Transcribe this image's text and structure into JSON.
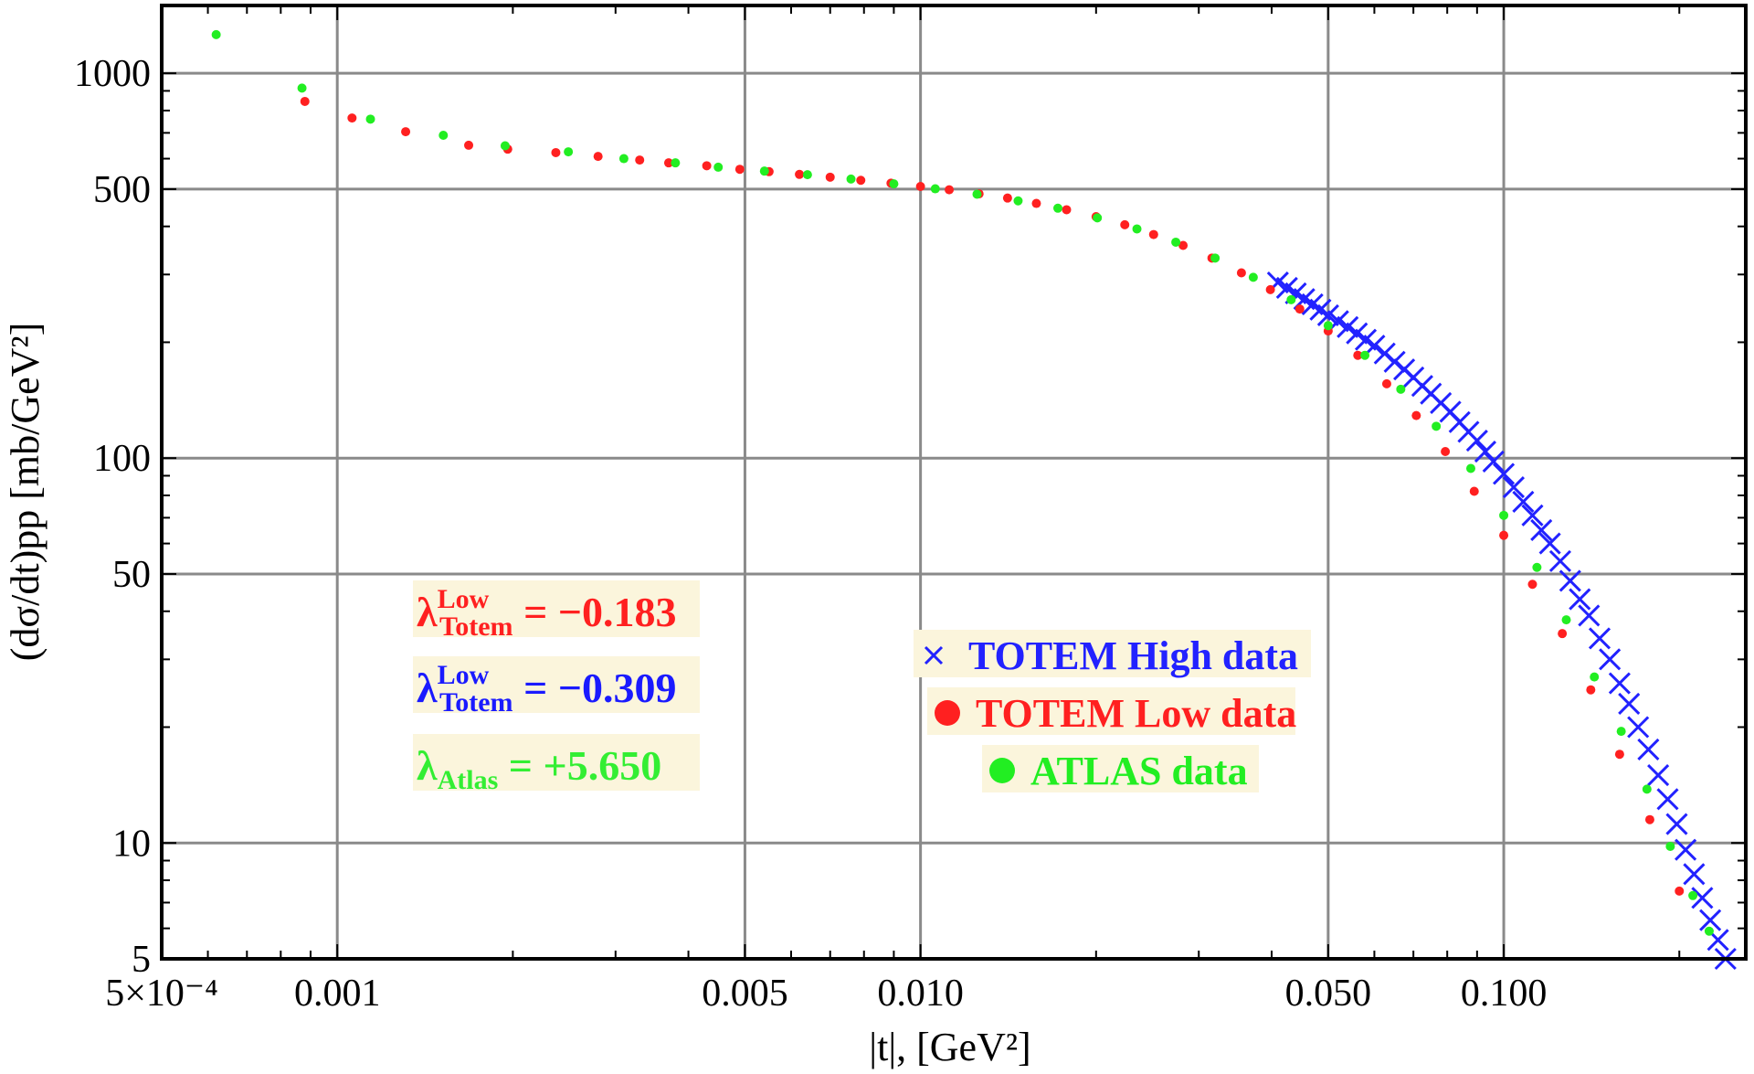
{
  "chart_data": {
    "type": "scatter",
    "x_scale": "log",
    "y_scale": "log",
    "xlim": [
      0.0005,
      0.26
    ],
    "ylim": [
      5,
      1500
    ],
    "grid": true,
    "xlabel": "|t|, [GeV²]",
    "ylabel": "(dσ/dt)pp [mb/GeV²]",
    "x_ticks": [
      {
        "value": 0.0005,
        "label": "5×10⁻⁴"
      },
      {
        "value": 0.001,
        "label": "0.001"
      },
      {
        "value": 0.005,
        "label": "0.005"
      },
      {
        "value": 0.01,
        "label": "0.010"
      },
      {
        "value": 0.05,
        "label": "0.050"
      },
      {
        "value": 0.1,
        "label": "0.100"
      }
    ],
    "y_ticks": [
      {
        "value": 5,
        "label": "5"
      },
      {
        "value": 10,
        "label": "10"
      },
      {
        "value": 50,
        "label": "50"
      },
      {
        "value": 100,
        "label": "100"
      },
      {
        "value": 500,
        "label": "500"
      },
      {
        "value": 1000,
        "label": "1000"
      }
    ],
    "legend": {
      "placement": "center-right",
      "entries": [
        "TOTEM High data",
        "TOTEM Low data",
        "ATLAS data"
      ]
    },
    "annotations": [
      {
        "symbol": "λ",
        "sup": "Low",
        "sub": "Totem",
        "text": " = −0.183",
        "color": "#ff2020"
      },
      {
        "symbol": "λ",
        "sup": "Low",
        "sub": "Totem",
        "text": " = −0.309",
        "color": "#1a1aff"
      },
      {
        "symbol": "λ",
        "sup": "",
        "sub": "Atlas",
        "text": " = +5.650",
        "color": "#33ee33"
      }
    ],
    "series": [
      {
        "name": "TOTEM High data",
        "marker": "cross",
        "color": "#2222ff",
        "points": [
          [
            0.041,
            286
          ],
          [
            0.0425,
            277
          ],
          [
            0.044,
            268
          ],
          [
            0.0455,
            259
          ],
          [
            0.047,
            251
          ],
          [
            0.0485,
            243
          ],
          [
            0.05,
            235
          ],
          [
            0.052,
            227
          ],
          [
            0.054,
            219
          ],
          [
            0.056,
            211
          ],
          [
            0.058,
            203
          ],
          [
            0.06,
            196
          ],
          [
            0.0625,
            187
          ],
          [
            0.065,
            178
          ],
          [
            0.0675,
            170
          ],
          [
            0.07,
            162
          ],
          [
            0.0725,
            154
          ],
          [
            0.075,
            147
          ],
          [
            0.078,
            139
          ],
          [
            0.081,
            132
          ],
          [
            0.084,
            124
          ],
          [
            0.087,
            117
          ],
          [
            0.09,
            111
          ],
          [
            0.093,
            104
          ],
          [
            0.096,
            98
          ],
          [
            0.1,
            91
          ],
          [
            0.104,
            84
          ],
          [
            0.108,
            77
          ],
          [
            0.112,
            71
          ],
          [
            0.116,
            65
          ],
          [
            0.12,
            60
          ],
          [
            0.125,
            54
          ],
          [
            0.13,
            48
          ],
          [
            0.135,
            43
          ],
          [
            0.14,
            39
          ],
          [
            0.146,
            34
          ],
          [
            0.152,
            30
          ],
          [
            0.158,
            26
          ],
          [
            0.164,
            23
          ],
          [
            0.17,
            20
          ],
          [
            0.177,
            17.5
          ],
          [
            0.184,
            15
          ],
          [
            0.191,
            13
          ],
          [
            0.198,
            11.2
          ],
          [
            0.205,
            9.6
          ],
          [
            0.212,
            8.3
          ],
          [
            0.219,
            7.2
          ],
          [
            0.226,
            6.3
          ],
          [
            0.233,
            5.6
          ],
          [
            0.24,
            5.0
          ],
          [
            0.247,
            4.5
          ]
        ]
      },
      {
        "name": "TOTEM Low data",
        "marker": "circle",
        "color": "#ff2020",
        "points": [
          [
            0.00088,
            845
          ],
          [
            0.00106,
            765
          ],
          [
            0.00131,
            705
          ],
          [
            0.00168,
            650
          ],
          [
            0.00196,
            635
          ],
          [
            0.00237,
            622
          ],
          [
            0.0028,
            608
          ],
          [
            0.0033,
            595
          ],
          [
            0.0037,
            585
          ],
          [
            0.0043,
            575
          ],
          [
            0.0049,
            563
          ],
          [
            0.0055,
            555
          ],
          [
            0.0062,
            546
          ],
          [
            0.007,
            537
          ],
          [
            0.0079,
            527
          ],
          [
            0.0089,
            518
          ],
          [
            0.01,
            508
          ],
          [
            0.0112,
            498
          ],
          [
            0.0126,
            486
          ],
          [
            0.0141,
            474
          ],
          [
            0.0158,
            459
          ],
          [
            0.0178,
            442
          ],
          [
            0.02,
            424
          ],
          [
            0.0224,
            404
          ],
          [
            0.0251,
            381
          ],
          [
            0.0282,
            357
          ],
          [
            0.0316,
            331
          ],
          [
            0.0355,
            303
          ],
          [
            0.0398,
            274
          ],
          [
            0.0447,
            244
          ],
          [
            0.05,
            214
          ],
          [
            0.0562,
            185
          ],
          [
            0.063,
            156
          ],
          [
            0.0708,
            129
          ],
          [
            0.0794,
            104
          ],
          [
            0.089,
            82
          ],
          [
            0.1,
            63
          ],
          [
            0.112,
            47
          ],
          [
            0.126,
            35
          ],
          [
            0.141,
            25
          ],
          [
            0.158,
            17
          ],
          [
            0.178,
            11.5
          ],
          [
            0.2,
            7.5
          ]
        ]
      },
      {
        "name": "ATLAS data",
        "marker": "circle",
        "color": "#22ee22",
        "points": [
          [
            0.00062,
            1260
          ],
          [
            0.00087,
            915
          ],
          [
            0.00114,
            760
          ],
          [
            0.00152,
            690
          ],
          [
            0.00194,
            648
          ],
          [
            0.00249,
            625
          ],
          [
            0.0031,
            600
          ],
          [
            0.0038,
            585
          ],
          [
            0.0045,
            570
          ],
          [
            0.0054,
            557
          ],
          [
            0.0064,
            545
          ],
          [
            0.0076,
            531
          ],
          [
            0.009,
            516
          ],
          [
            0.0106,
            501
          ],
          [
            0.0125,
            485
          ],
          [
            0.0147,
            466
          ],
          [
            0.0172,
            446
          ],
          [
            0.0201,
            421
          ],
          [
            0.0235,
            394
          ],
          [
            0.0274,
            364
          ],
          [
            0.032,
            331
          ],
          [
            0.0372,
            295
          ],
          [
            0.0432,
            258
          ],
          [
            0.05,
            221
          ],
          [
            0.0578,
            185
          ],
          [
            0.0666,
            151
          ],
          [
            0.0766,
            121
          ],
          [
            0.0878,
            94
          ],
          [
            0.1,
            71
          ],
          [
            0.114,
            52
          ],
          [
            0.128,
            38
          ],
          [
            0.143,
            27
          ],
          [
            0.159,
            19.5
          ],
          [
            0.176,
            13.8
          ],
          [
            0.193,
            9.8
          ],
          [
            0.211,
            7.3
          ],
          [
            0.225,
            5.9
          ]
        ]
      }
    ]
  }
}
